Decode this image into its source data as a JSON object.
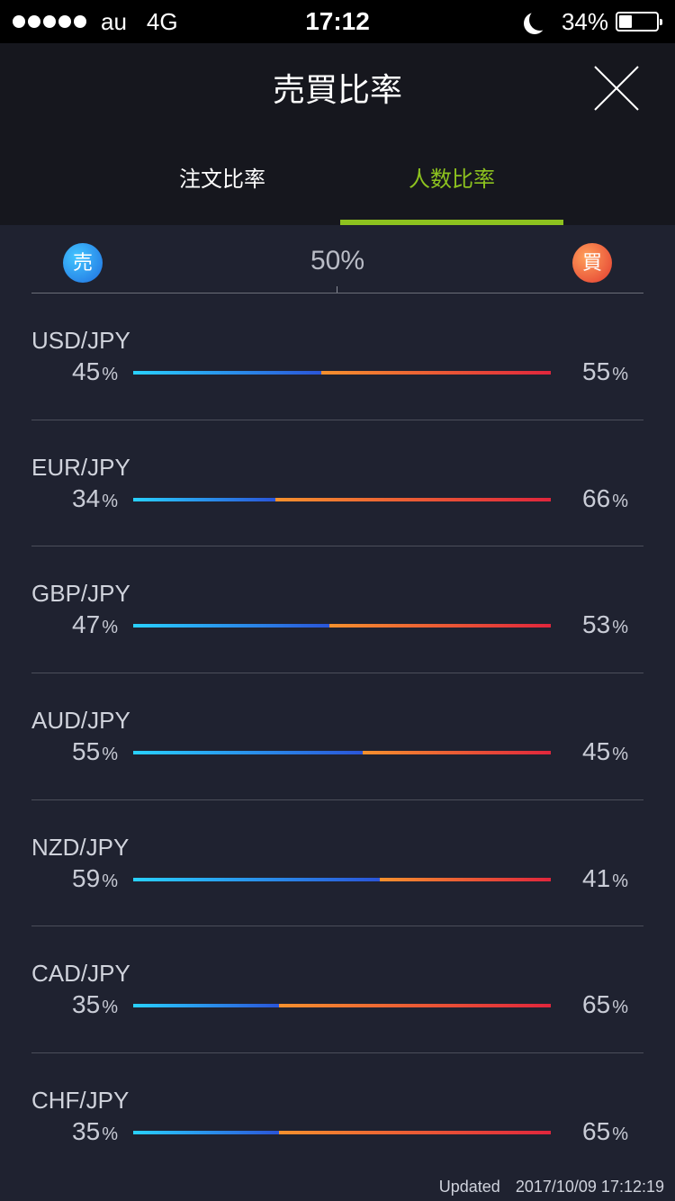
{
  "status_bar": {
    "carrier": "au",
    "network": "4G",
    "time": "17:12",
    "battery": "34%",
    "battery_level": 0.34
  },
  "header": {
    "title": "売買比率",
    "tabs": [
      {
        "label": "注文比率",
        "active": false
      },
      {
        "label": "人数比率",
        "active": true
      }
    ],
    "accent_color": "#8dc21f"
  },
  "legend": {
    "sell_badge": "売",
    "buy_badge": "買",
    "center": "50%"
  },
  "pct_symbol": "%",
  "rows": [
    {
      "pair": "USD/JPY",
      "sell": "45",
      "buy": "55"
    },
    {
      "pair": "EUR/JPY",
      "sell": "34",
      "buy": "66"
    },
    {
      "pair": "GBP/JPY",
      "sell": "47",
      "buy": "53"
    },
    {
      "pair": "AUD/JPY",
      "sell": "55",
      "buy": "45"
    },
    {
      "pair": "NZD/JPY",
      "sell": "59",
      "buy": "41"
    },
    {
      "pair": "CAD/JPY",
      "sell": "35",
      "buy": "65"
    },
    {
      "pair": "CHF/JPY",
      "sell": "35",
      "buy": "65"
    }
  ],
  "footer": {
    "updated_label": "Updated",
    "updated_time": "2017/10/09 17:12:19"
  }
}
